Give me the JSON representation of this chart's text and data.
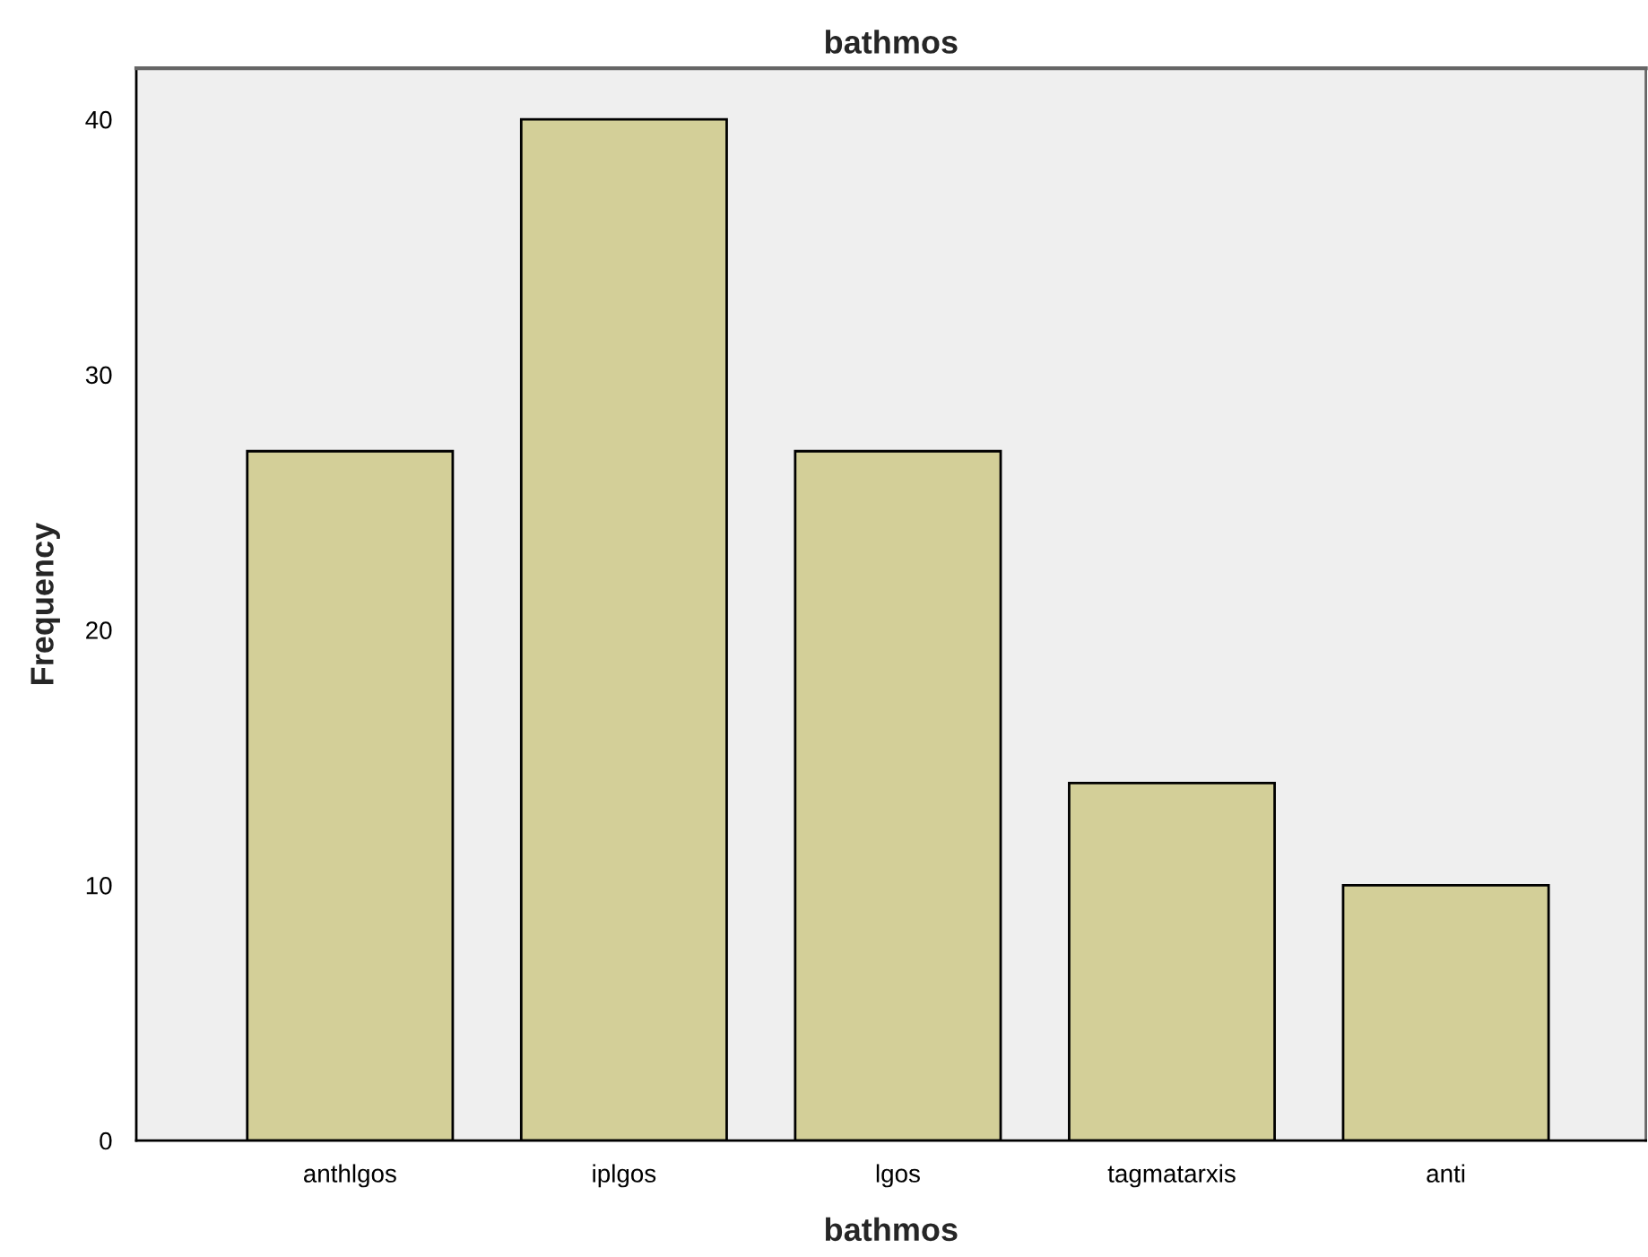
{
  "chart_data": {
    "type": "bar",
    "title": "bathmos",
    "xlabel": "bathmos",
    "ylabel": "Frequency",
    "categories": [
      "anthlgos",
      "iplgos",
      "lgos",
      "tagmatarxis",
      "anti"
    ],
    "values": [
      27,
      40,
      27,
      14,
      10
    ],
    "color": "#d3cf98",
    "ylim": [
      0,
      42
    ],
    "yticks": [
      0,
      10,
      20,
      30,
      40
    ],
    "grid": false,
    "legend": false
  }
}
